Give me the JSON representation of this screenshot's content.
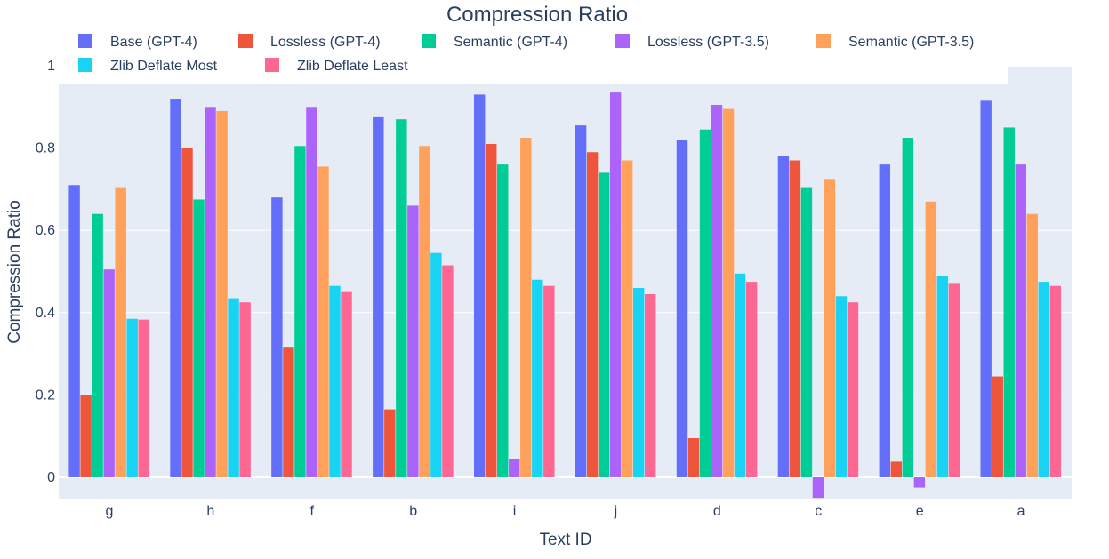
{
  "chart_data": {
    "type": "bar",
    "title": "Compression Ratio",
    "xlabel": "Text ID",
    "ylabel": "Compression Ratio",
    "categories": [
      "g",
      "h",
      "f",
      "b",
      "i",
      "j",
      "d",
      "c",
      "e",
      "a"
    ],
    "ylim": [
      -0.05,
      1.0
    ],
    "yticks": [
      0,
      0.2,
      0.4,
      0.6,
      0.8,
      1
    ],
    "ytick_labels": [
      "0",
      "0.2",
      "0.4",
      "0.6",
      "0.8",
      "1"
    ],
    "grid": true,
    "legend_position": "top",
    "plot_background": "#e5ecf6",
    "series": [
      {
        "name": "Base (GPT-4)",
        "color": "#636efa",
        "values": [
          0.71,
          0.92,
          0.68,
          0.875,
          0.93,
          0.855,
          0.82,
          0.78,
          0.76,
          0.915
        ]
      },
      {
        "name": "Lossless (GPT-4)",
        "color": "#ef553b",
        "values": [
          0.2,
          0.8,
          0.315,
          0.165,
          0.81,
          0.79,
          0.095,
          0.77,
          0.038,
          0.245
        ]
      },
      {
        "name": "Semantic (GPT-4)",
        "color": "#00cc96",
        "values": [
          0.64,
          0.675,
          0.805,
          0.87,
          0.76,
          0.74,
          0.845,
          0.705,
          0.825,
          0.85
        ]
      },
      {
        "name": "Lossless (GPT-3.5)",
        "color": "#ab63fa",
        "values": [
          0.505,
          0.9,
          0.9,
          0.66,
          0.045,
          0.935,
          0.905,
          -0.05,
          -0.025,
          0.76
        ]
      },
      {
        "name": "Semantic (GPT-3.5)",
        "color": "#ffa15a",
        "values": [
          0.705,
          0.89,
          0.755,
          0.805,
          0.825,
          0.77,
          0.895,
          0.725,
          0.67,
          0.64
        ]
      },
      {
        "name": "Zlib Deflate Most",
        "color": "#19d3f3",
        "values": [
          0.385,
          0.435,
          0.465,
          0.545,
          0.48,
          0.46,
          0.495,
          0.44,
          0.49,
          0.475
        ]
      },
      {
        "name": "Zlib Deflate Least",
        "color": "#ff6692",
        "values": [
          0.383,
          0.425,
          0.45,
          0.515,
          0.465,
          0.445,
          0.475,
          0.425,
          0.47,
          0.465
        ]
      }
    ]
  }
}
